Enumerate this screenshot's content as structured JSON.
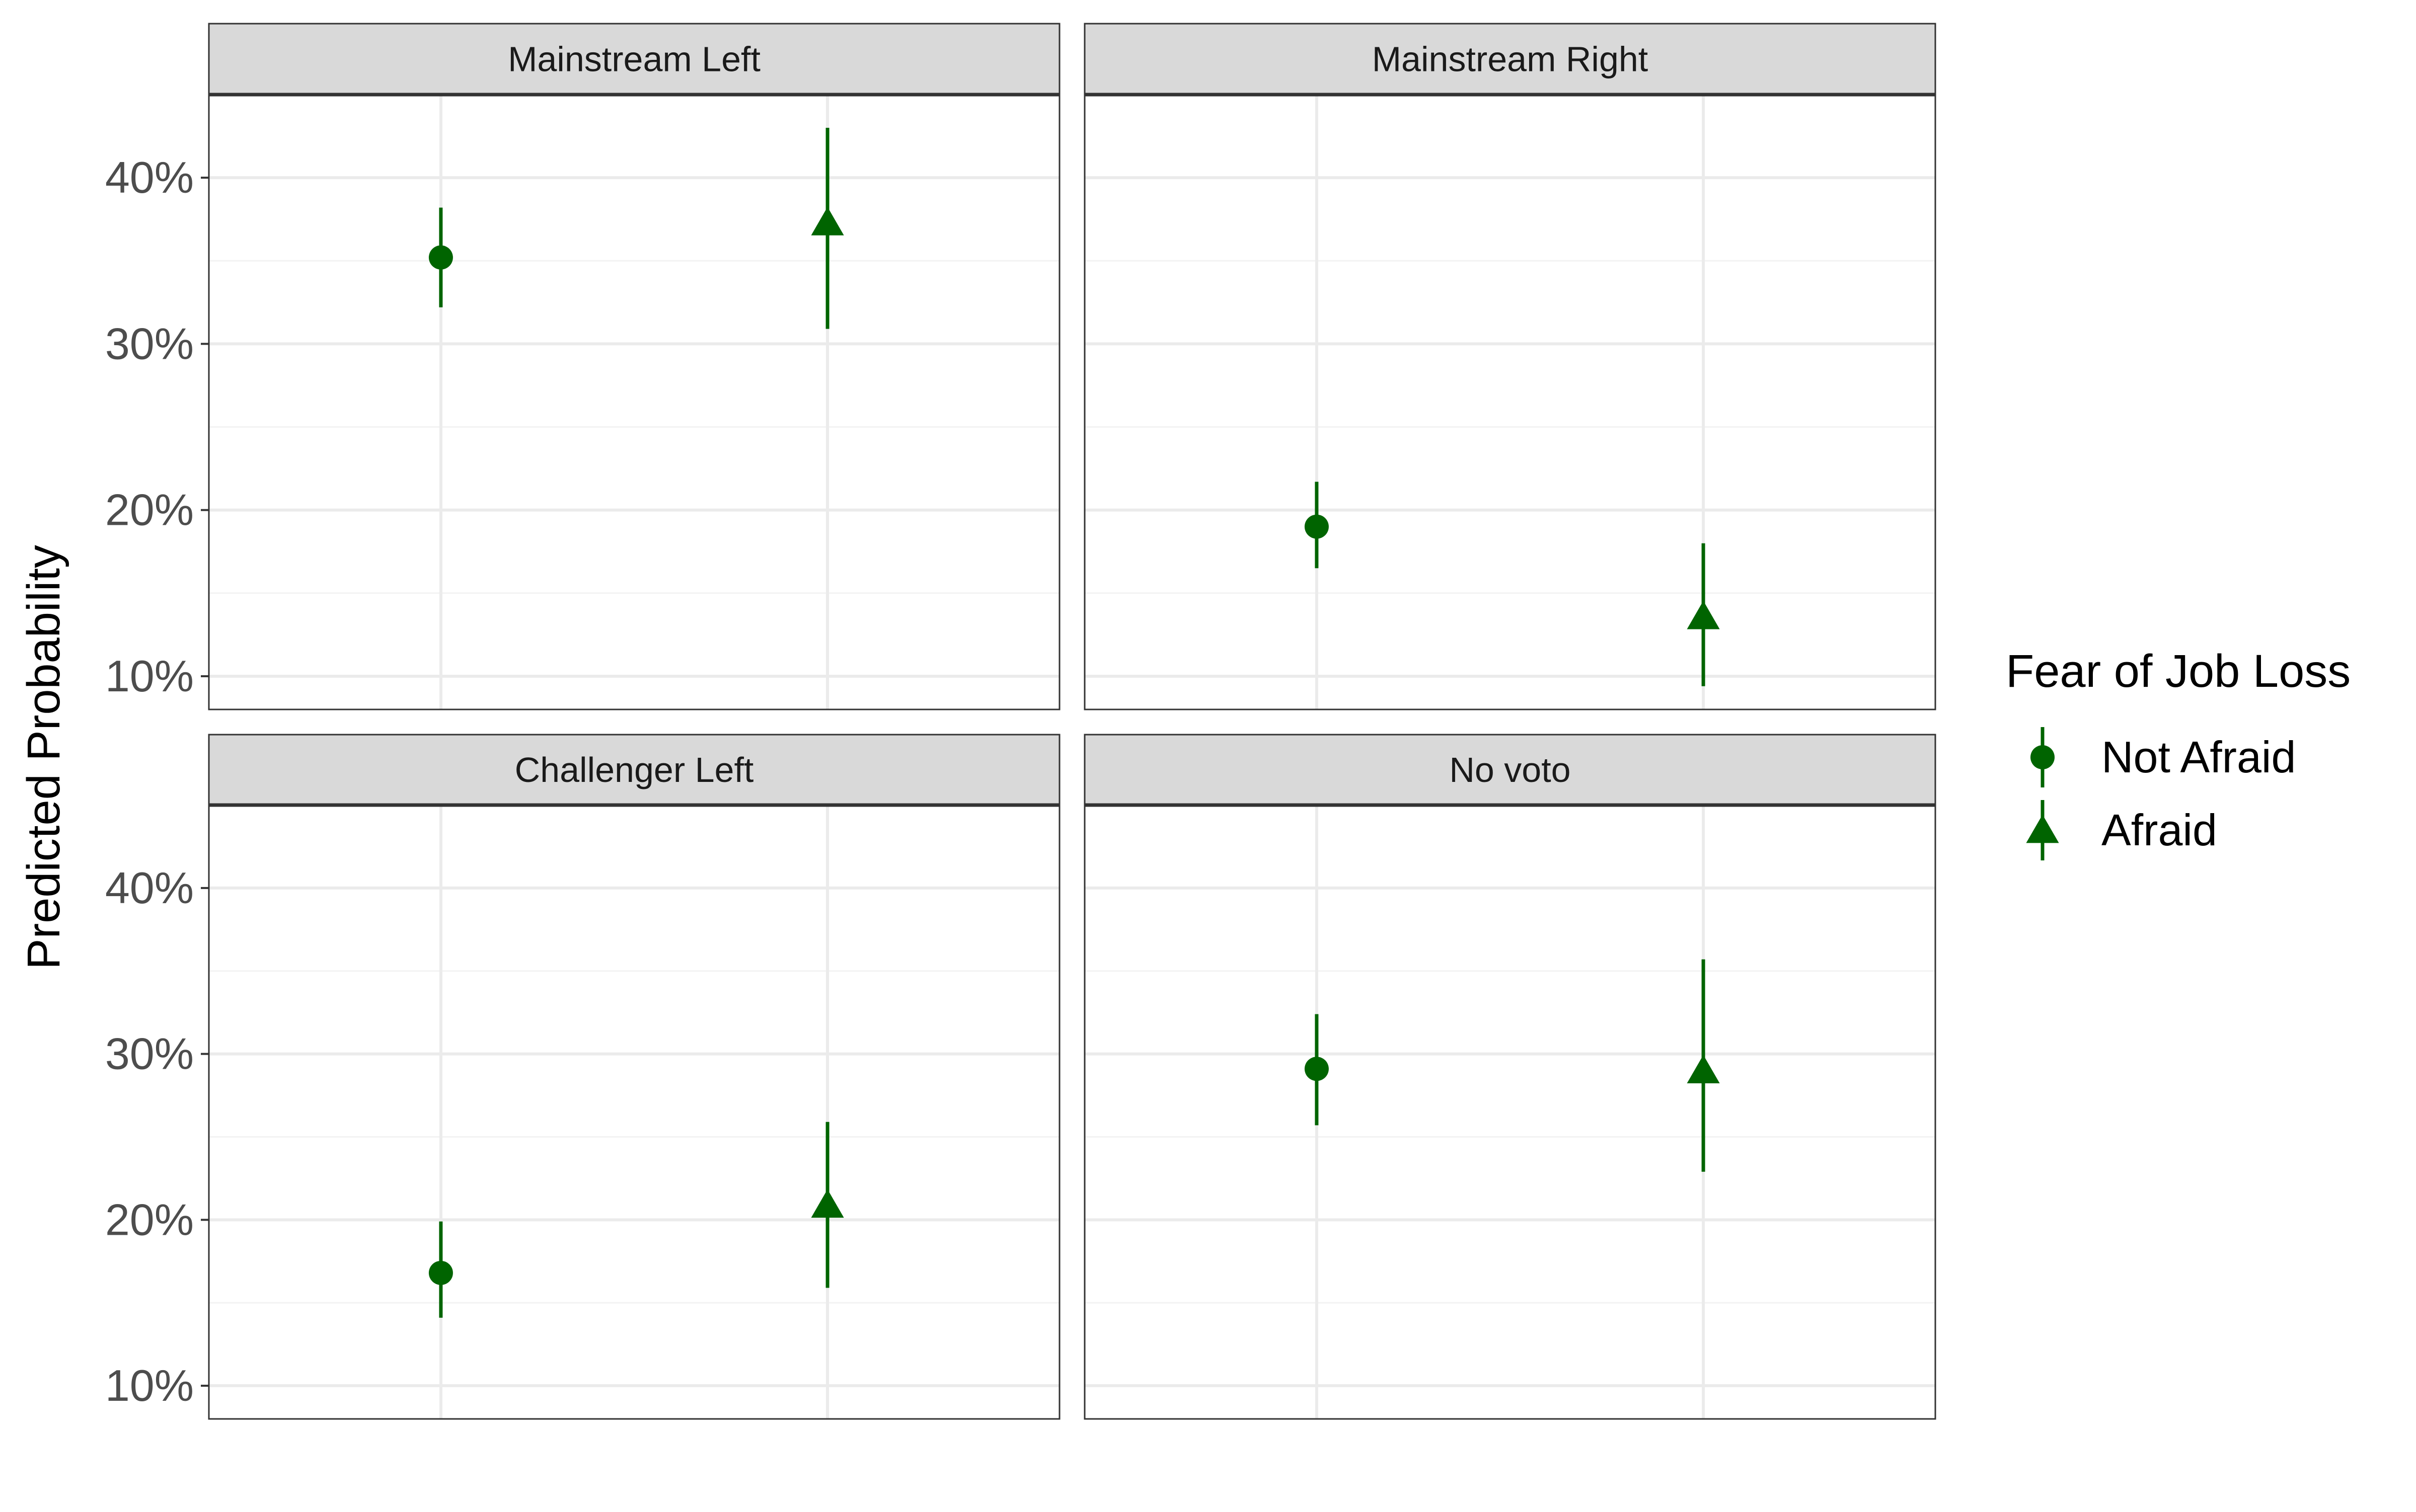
{
  "chart_data": {
    "type": "scatter",
    "subtype": "faceted point-range (estimate with confidence interval)",
    "ylabel": "Predicted Probability",
    "xlabel": "",
    "ylim": [
      0.08,
      0.45
    ],
    "yticks": [
      0.1,
      0.2,
      0.3,
      0.4
    ],
    "ytick_labels": [
      "10%",
      "20%",
      "30%",
      "40%"
    ],
    "grid": true,
    "legend": {
      "title": "Fear of Job Loss",
      "position": "right",
      "entries": [
        {
          "label": "Not Afraid",
          "shape": "circle"
        },
        {
          "label": "Afraid",
          "shape": "triangle"
        }
      ]
    },
    "color": "#006400",
    "facets": [
      {
        "title": "Mainstream Left",
        "points": [
          {
            "group": "Not Afraid",
            "estimate": 0.352,
            "lower": 0.322,
            "upper": 0.382
          },
          {
            "group": "Afraid",
            "estimate": 0.373,
            "lower": 0.309,
            "upper": 0.43
          }
        ]
      },
      {
        "title": "Mainstream Right",
        "points": [
          {
            "group": "Not Afraid",
            "estimate": 0.19,
            "lower": 0.165,
            "upper": 0.217
          },
          {
            "group": "Afraid",
            "estimate": 0.136,
            "lower": 0.094,
            "upper": 0.18
          }
        ]
      },
      {
        "title": "Challenger Left",
        "points": [
          {
            "group": "Not Afraid",
            "estimate": 0.168,
            "lower": 0.141,
            "upper": 0.199
          },
          {
            "group": "Afraid",
            "estimate": 0.209,
            "lower": 0.159,
            "upper": 0.259
          }
        ]
      },
      {
        "title": "No voto",
        "points": [
          {
            "group": "Not Afraid",
            "estimate": 0.291,
            "lower": 0.257,
            "upper": 0.324
          },
          {
            "group": "Afraid",
            "estimate": 0.29,
            "lower": 0.229,
            "upper": 0.357
          }
        ]
      }
    ]
  }
}
